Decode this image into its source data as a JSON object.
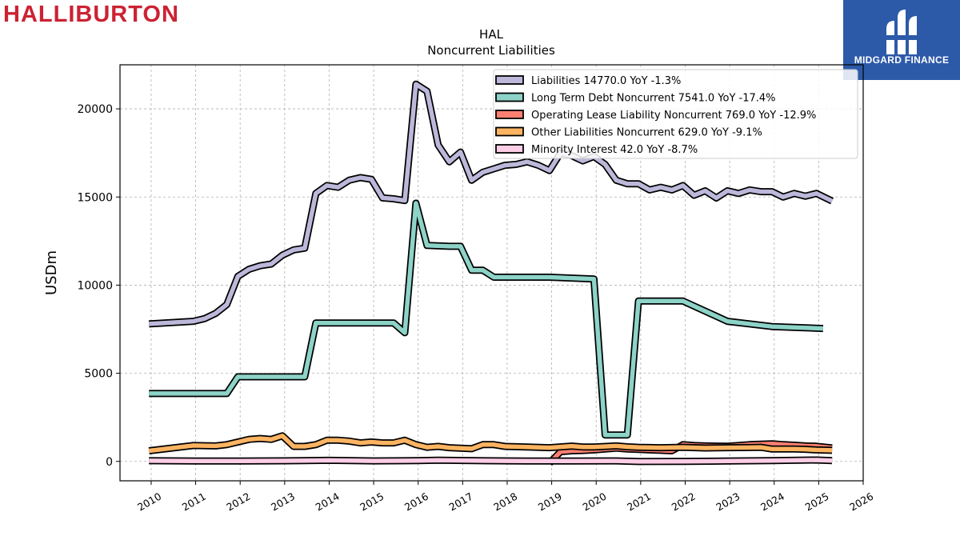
{
  "header": {
    "brand": "HALLIBURTON",
    "badge_text": "MIDGARD FINANCE",
    "badge_color": "#2d5aa8",
    "brand_color": "#cc2233"
  },
  "chart_data": {
    "type": "line",
    "title": "HAL",
    "subtitle": "Noncurrent  Liabilities",
    "ylabel": "USDm",
    "xlabel": "",
    "xlim": [
      2009.3,
      2026.0
    ],
    "ylim": [
      -1100,
      22500
    ],
    "grid": true,
    "legend_position": "top-right",
    "x_ticks": [
      "2010",
      "2011",
      "2012",
      "2013",
      "2014",
      "2015",
      "2016",
      "2017",
      "2018",
      "2019",
      "2020",
      "2021",
      "2022",
      "2023",
      "2024",
      "2025",
      "2026"
    ],
    "y_ticks": [
      0,
      5000,
      10000,
      15000,
      20000
    ],
    "series": [
      {
        "name": "Liabilities",
        "legend": "Liabilities  14770.0 YoY -1.3%",
        "color": "#bcb8da",
        "points": [
          [
            2009.95,
            7800
          ],
          [
            2010.95,
            7950
          ],
          [
            2011.2,
            8100
          ],
          [
            2011.45,
            8400
          ],
          [
            2011.7,
            8900
          ],
          [
            2011.95,
            10500
          ],
          [
            2012.2,
            10900
          ],
          [
            2012.45,
            11100
          ],
          [
            2012.7,
            11200
          ],
          [
            2012.95,
            11700
          ],
          [
            2013.2,
            12000
          ],
          [
            2013.45,
            12100
          ],
          [
            2013.7,
            15200
          ],
          [
            2013.95,
            15650
          ],
          [
            2014.2,
            15550
          ],
          [
            2014.45,
            15950
          ],
          [
            2014.7,
            16100
          ],
          [
            2014.95,
            16000
          ],
          [
            2015.2,
            14950
          ],
          [
            2015.45,
            14900
          ],
          [
            2015.7,
            14800
          ],
          [
            2015.95,
            21400
          ],
          [
            2016.2,
            21000
          ],
          [
            2016.45,
            17950
          ],
          [
            2016.7,
            17000
          ],
          [
            2016.95,
            17550
          ],
          [
            2017.2,
            15950
          ],
          [
            2017.45,
            16400
          ],
          [
            2017.7,
            16600
          ],
          [
            2017.95,
            16800
          ],
          [
            2018.2,
            16850
          ],
          [
            2018.45,
            17000
          ],
          [
            2018.7,
            16800
          ],
          [
            2018.95,
            16500
          ],
          [
            2019.2,
            17500
          ],
          [
            2019.45,
            17350
          ],
          [
            2019.7,
            17050
          ],
          [
            2019.95,
            17300
          ],
          [
            2020.2,
            16850
          ],
          [
            2020.45,
            15950
          ],
          [
            2020.7,
            15750
          ],
          [
            2020.95,
            15750
          ],
          [
            2021.2,
            15400
          ],
          [
            2021.45,
            15550
          ],
          [
            2021.7,
            15400
          ],
          [
            2021.95,
            15650
          ],
          [
            2022.2,
            15100
          ],
          [
            2022.45,
            15350
          ],
          [
            2022.7,
            14950
          ],
          [
            2022.95,
            15350
          ],
          [
            2023.2,
            15200
          ],
          [
            2023.45,
            15400
          ],
          [
            2023.7,
            15300
          ],
          [
            2023.95,
            15300
          ],
          [
            2024.2,
            15000
          ],
          [
            2024.45,
            15200
          ],
          [
            2024.7,
            15050
          ],
          [
            2024.95,
            15200
          ],
          [
            2025.3,
            14770
          ]
        ]
      },
      {
        "name": "Long Term Debt Noncurrent",
        "legend": "Long Term Debt Noncurrent  7541.0 YoY -17.4%",
        "color": "#8dd3c7",
        "points": [
          [
            2009.95,
            3850
          ],
          [
            2011.7,
            3850
          ],
          [
            2011.95,
            4800
          ],
          [
            2013.45,
            4800
          ],
          [
            2013.7,
            7850
          ],
          [
            2015.45,
            7850
          ],
          [
            2015.7,
            7300
          ],
          [
            2015.95,
            14650
          ],
          [
            2016.2,
            12250
          ],
          [
            2016.7,
            12200
          ],
          [
            2016.95,
            12200
          ],
          [
            2017.2,
            10850
          ],
          [
            2017.45,
            10850
          ],
          [
            2017.7,
            10450
          ],
          [
            2018.95,
            10450
          ],
          [
            2019.95,
            10350
          ],
          [
            2020.2,
            1500
          ],
          [
            2020.7,
            1500
          ],
          [
            2020.95,
            9100
          ],
          [
            2021.95,
            9100
          ],
          [
            2022.95,
            7950
          ],
          [
            2023.95,
            7650
          ],
          [
            2025.1,
            7541
          ]
        ]
      },
      {
        "name": "Operating Lease Liability Noncurrent",
        "legend": "Operating Lease Liability Noncurrent  769.0 YoY -12.9%",
        "color": "#fb8072",
        "points": [
          [
            2018.95,
            -100
          ],
          [
            2019.2,
            550
          ],
          [
            2019.45,
            600
          ],
          [
            2019.7,
            620
          ],
          [
            2019.95,
            650
          ],
          [
            2020.2,
            700
          ],
          [
            2020.45,
            750
          ],
          [
            2020.7,
            700
          ],
          [
            2020.95,
            680
          ],
          [
            2021.2,
            650
          ],
          [
            2021.45,
            630
          ],
          [
            2021.7,
            600
          ],
          [
            2021.95,
            950
          ],
          [
            2022.2,
            900
          ],
          [
            2022.45,
            880
          ],
          [
            2022.7,
            870
          ],
          [
            2022.95,
            860
          ],
          [
            2023.2,
            900
          ],
          [
            2023.45,
            950
          ],
          [
            2023.7,
            980
          ],
          [
            2023.95,
            1000
          ],
          [
            2024.2,
            950
          ],
          [
            2024.45,
            920
          ],
          [
            2024.7,
            880
          ],
          [
            2024.95,
            860
          ],
          [
            2025.3,
            769
          ]
        ]
      },
      {
        "name": "Other Liabilities Noncurrent",
        "legend": "Other Liabilities Noncurrent  629.0 YoY -9.1%",
        "color": "#fdb462",
        "points": [
          [
            2009.95,
            600
          ],
          [
            2010.95,
            900
          ],
          [
            2011.45,
            880
          ],
          [
            2011.7,
            950
          ],
          [
            2011.95,
            1100
          ],
          [
            2012.2,
            1250
          ],
          [
            2012.45,
            1300
          ],
          [
            2012.7,
            1250
          ],
          [
            2012.95,
            1450
          ],
          [
            2013.2,
            850
          ],
          [
            2013.45,
            850
          ],
          [
            2013.7,
            950
          ],
          [
            2013.95,
            1200
          ],
          [
            2014.2,
            1200
          ],
          [
            2014.45,
            1150
          ],
          [
            2014.7,
            1050
          ],
          [
            2014.95,
            1100
          ],
          [
            2015.2,
            1050
          ],
          [
            2015.45,
            1050
          ],
          [
            2015.7,
            1200
          ],
          [
            2015.95,
            950
          ],
          [
            2016.2,
            800
          ],
          [
            2016.45,
            850
          ],
          [
            2016.7,
            780
          ],
          [
            2016.95,
            750
          ],
          [
            2017.2,
            720
          ],
          [
            2017.45,
            950
          ],
          [
            2017.7,
            950
          ],
          [
            2017.95,
            850
          ],
          [
            2018.45,
            820
          ],
          [
            2018.95,
            780
          ],
          [
            2019.45,
            870
          ],
          [
            2019.7,
            820
          ],
          [
            2019.95,
            820
          ],
          [
            2020.45,
            880
          ],
          [
            2020.7,
            830
          ],
          [
            2020.95,
            800
          ],
          [
            2021.45,
            780
          ],
          [
            2021.95,
            800
          ],
          [
            2022.45,
            760
          ],
          [
            2022.95,
            780
          ],
          [
            2023.45,
            790
          ],
          [
            2023.7,
            800
          ],
          [
            2023.95,
            700
          ],
          [
            2024.45,
            700
          ],
          [
            2024.7,
            690
          ],
          [
            2024.95,
            650
          ],
          [
            2025.3,
            629
          ]
        ]
      },
      {
        "name": "Minority Interest",
        "legend": "Minority Interest  42.0 YoY -8.7%",
        "color": "#fccde5",
        "points": [
          [
            2009.95,
            40
          ],
          [
            2011.0,
            20
          ],
          [
            2012.0,
            25
          ],
          [
            2013.0,
            35
          ],
          [
            2014.0,
            60
          ],
          [
            2015.0,
            30
          ],
          [
            2016.0,
            45
          ],
          [
            2016.45,
            70
          ],
          [
            2017.45,
            40
          ],
          [
            2018.45,
            25
          ],
          [
            2019.45,
            20
          ],
          [
            2020.45,
            30
          ],
          [
            2020.95,
            -5
          ],
          [
            2021.95,
            5
          ],
          [
            2022.95,
            20
          ],
          [
            2023.95,
            45
          ],
          [
            2024.95,
            80
          ],
          [
            2025.3,
            42
          ]
        ]
      }
    ]
  }
}
